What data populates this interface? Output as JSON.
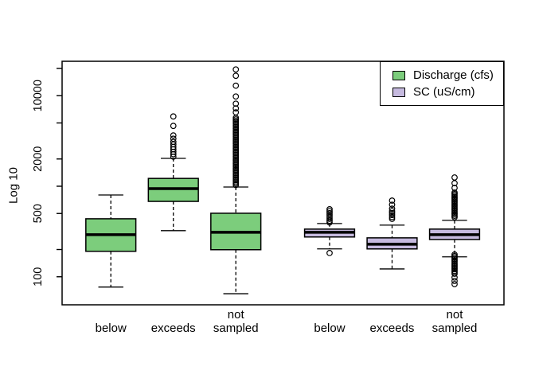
{
  "figure": {
    "background": "#ffffff",
    "frame_color": "#000000"
  },
  "legend": {
    "items": [
      {
        "label": "Discharge (cfs)",
        "color": "#7CCD7C"
      },
      {
        "label": "SC (uS/cm)",
        "color": "#C6BADF"
      }
    ]
  },
  "chart_data": {
    "type": "boxplot",
    "title": "",
    "xlabel": "",
    "ylabel": "Log 10",
    "yscale": "log10",
    "ylim": [
      49,
      24000
    ],
    "xlim": [
      0.22,
      7.29
    ],
    "grid": false,
    "legend_position": "top-right-inside",
    "yticks": [
      {
        "value": 100,
        "label": "100"
      },
      {
        "value": 200,
        "label": ""
      },
      {
        "value": 500,
        "label": "500"
      },
      {
        "value": 1000,
        "label": ""
      },
      {
        "value": 2000,
        "label": "2000"
      },
      {
        "value": 5000,
        "label": ""
      },
      {
        "value": 10000,
        "label": "10000"
      },
      {
        "value": 20000,
        "label": ""
      }
    ],
    "box_width_units": 0.8,
    "boxes": [
      {
        "position": 1,
        "category_lines": [
          "below"
        ],
        "series": "Discharge (cfs)",
        "color": "#7CCD7C",
        "whisker_low": 77,
        "q1": 191,
        "median": 292,
        "q3": 437,
        "whisker_high": 800,
        "outliers": []
      },
      {
        "position": 2,
        "category_lines": [
          "exceeds"
        ],
        "series": "Discharge (cfs)",
        "color": "#7CCD7C",
        "whisker_low": 323,
        "q1": 680,
        "median": 940,
        "q3": 1220,
        "whisker_high": 2030,
        "outliers": [
          5900,
          4640,
          3640,
          3350,
          3090,
          2900,
          2720,
          2560,
          2400,
          2260,
          2120
        ]
      },
      {
        "position": 3,
        "category_lines": [
          "not",
          "sampled"
        ],
        "series": "Discharge (cfs)",
        "color": "#7CCD7C",
        "whisker_low": 65,
        "q1": 199,
        "median": 310,
        "q3": 503,
        "whisker_high": 980,
        "outliers": [
          19500,
          16600,
          12900,
          9800,
          8170,
          7240,
          6550,
          5700,
          5480,
          5270,
          5070,
          4880,
          4690,
          4510,
          4340,
          4170,
          4010,
          3860,
          3710,
          3570,
          3430,
          3300,
          3180,
          3060,
          2940,
          2830,
          2720,
          2620,
          2520,
          2420,
          2330,
          2240,
          2150,
          2070,
          1990,
          1920,
          1840,
          1770,
          1700,
          1640,
          1580,
          1520,
          1460,
          1400,
          1350,
          1300,
          1250,
          1200,
          1160,
          1110,
          1070,
          1030
        ]
      },
      {
        "position": 4.5,
        "category_lines": [
          "below"
        ],
        "series": "SC (uS/cm)",
        "color": "#C6BADF",
        "whisker_low": 203,
        "q1": 275,
        "median": 310,
        "q3": 336,
        "whisker_high": 387,
        "outliers": [
          557,
          530,
          505,
          480,
          458,
          436,
          416,
          397,
          183
        ]
      },
      {
        "position": 5.5,
        "category_lines": [
          "exceeds"
        ],
        "series": "SC (uS/cm)",
        "color": "#C6BADF",
        "whisker_low": 122,
        "q1": 203,
        "median": 229,
        "q3": 269,
        "whisker_high": 372,
        "outliers": [
          694,
          625,
          565,
          530,
          505,
          480,
          457,
          436
        ]
      },
      {
        "position": 6.5,
        "category_lines": [
          "not",
          "sampled"
        ],
        "series": "SC (uS/cm)",
        "color": "#C6BADF",
        "whisker_low": 166,
        "q1": 258,
        "median": 292,
        "q3": 336,
        "whisker_high": 420,
        "outliers": [
          1250,
          1080,
          958,
          850,
          820,
          790,
          760,
          735,
          708,
          683,
          658,
          634,
          611,
          589,
          568,
          547,
          527,
          508,
          490,
          472,
          455,
          176,
          169,
          163,
          157,
          151,
          146,
          140,
          135,
          130,
          125,
          121,
          116,
          112,
          108,
          98,
          90,
          83
        ]
      }
    ]
  }
}
